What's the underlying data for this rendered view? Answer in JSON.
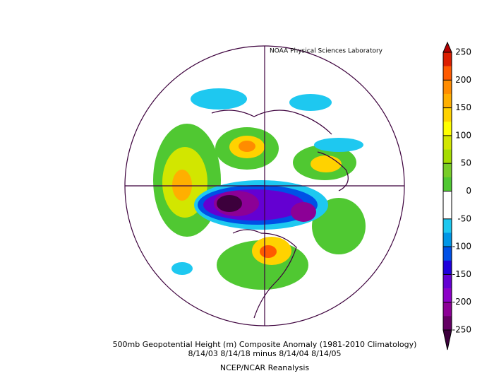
{
  "header": {
    "source": "NOAA Physical Sciences Laboratory"
  },
  "colorbar": {
    "ticks": [
      250,
      200,
      150,
      100,
      50,
      0,
      -50,
      -100,
      -150,
      -200,
      -250
    ],
    "colors": [
      "#dc1e00",
      "#ff5a00",
      "#ff8c00",
      "#ffaf00",
      "#ffd200",
      "#ffff00",
      "#d2e600",
      "#a5dc00",
      "#78cd28",
      "#50c832",
      "#ffffff",
      "#ffffff",
      "#1ec8f0",
      "#0096e6",
      "#0050e6",
      "#1e00dc",
      "#6400d2",
      "#8c00c8",
      "#8c0096",
      "#640064"
    ],
    "over_color": "#b40000",
    "under_color": "#3c003c"
  },
  "footer": {
    "title": "500mb Geopotential Height (m) Composite Anomaly (1981-2010 Climatology)",
    "dates": "8/14/03 8/14/18 minus 8/14/04 8/14/05",
    "source": "NCEP/NCAR Reanalysis"
  }
}
